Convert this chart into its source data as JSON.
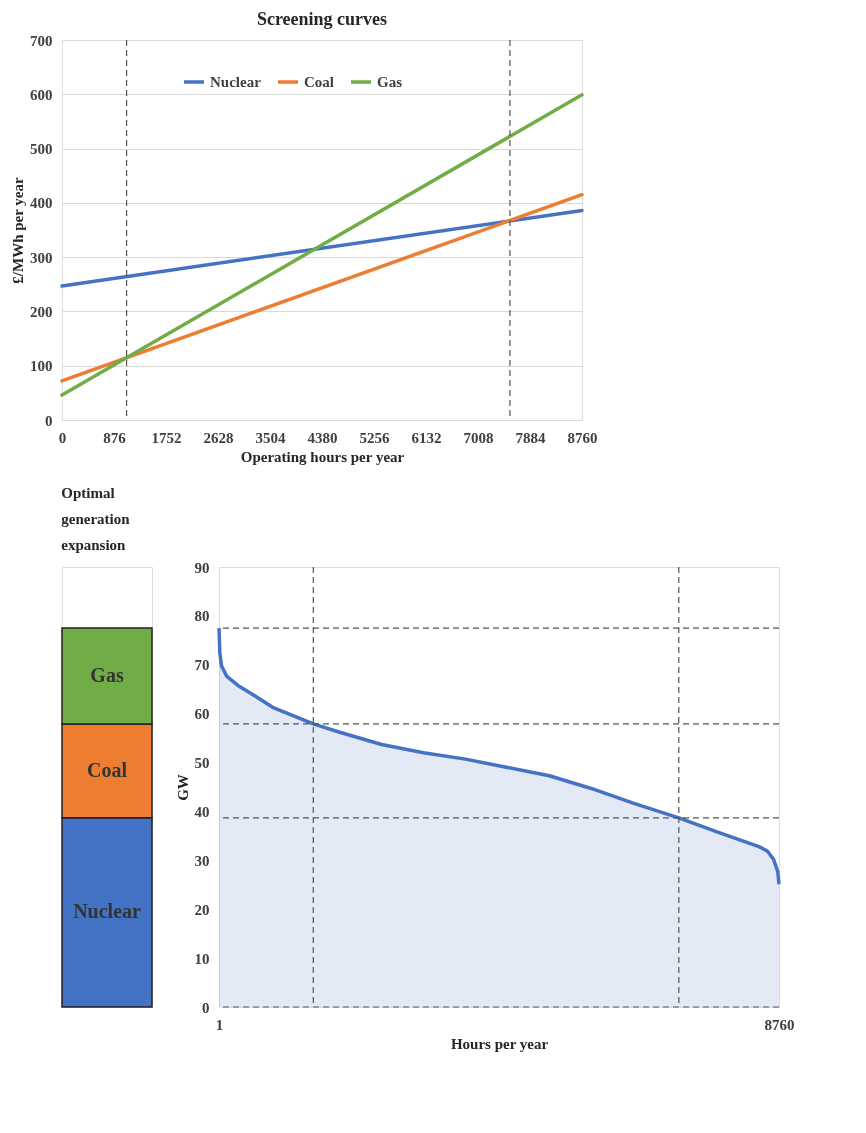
{
  "chart_data": [
    {
      "type": "line",
      "title": "Screening curves",
      "xlabel": "Operating hours per year",
      "ylabel": "£/MWh per year",
      "x": [
        0,
        8760
      ],
      "xlim": [
        0,
        8760
      ],
      "xticks": [
        0,
        876,
        1752,
        2628,
        3504,
        4380,
        5256,
        6132,
        7008,
        7884,
        8760
      ],
      "ylim": [
        0,
        700
      ],
      "yticks": [
        0,
        100,
        200,
        300,
        400,
        500,
        600,
        700
      ],
      "grid": "y",
      "legend": "top",
      "series": [
        {
          "name": "Nuclear",
          "color": "#4472c4",
          "values": [
            247,
            386
          ]
        },
        {
          "name": "Coal",
          "color": "#ed7d31",
          "values": [
            72,
            415
          ]
        },
        {
          "name": "Gas",
          "color": "#70ad47",
          "values": [
            46,
            599
          ]
        }
      ],
      "ref_lines": [
        {
          "axis": "x",
          "value": 1088,
          "line_style": "dashed",
          "color": "#555555"
        },
        {
          "axis": "x",
          "value": 7546,
          "line_style": "dashed",
          "color": "#555555"
        }
      ]
    },
    {
      "type": "area",
      "xlabel": "Hours per year",
      "ylabel": "GW",
      "x": [
        1,
        14,
        40,
        119,
        316,
        578,
        840,
        1476,
        1889,
        2545,
        3200,
        3856,
        4512,
        5167,
        5823,
        6479,
        7193,
        7790,
        8446,
        8577,
        8675,
        8741,
        8760
      ],
      "xlim": [
        1,
        8760
      ],
      "xticks": [
        1,
        8760
      ],
      "ylim": [
        0,
        90
      ],
      "yticks": [
        0,
        10,
        20,
        30,
        40,
        50,
        60,
        70,
        80,
        90
      ],
      "series": [
        {
          "type": "area",
          "color": "#4472c4",
          "values": [
            77.5,
            72.4,
            69.8,
            67.7,
            65.6,
            63.5,
            61.3,
            57.9,
            56.2,
            53.7,
            52.0,
            50.7,
            49.0,
            47.3,
            44.7,
            41.7,
            38.7,
            35.8,
            32.8,
            31.9,
            30.2,
            27.7,
            25.1
          ]
        }
      ],
      "ref_lines": [
        {
          "axis": "y",
          "value": 77.5,
          "line_style": "dashed",
          "color": "#555555"
        },
        {
          "axis": "y",
          "value": 57.9,
          "line_style": "dashed",
          "color": "#555555"
        },
        {
          "axis": "y",
          "value": 38.7,
          "line_style": "dashed",
          "color": "#555555"
        },
        {
          "axis": "y",
          "value": 0,
          "line_style": "dashed",
          "color": "#555555"
        },
        {
          "axis": "x",
          "value": 1476,
          "line_style": "dashed",
          "color": "#555555"
        },
        {
          "axis": "x",
          "value": 7193,
          "line_style": "dashed",
          "color": "#555555"
        }
      ]
    },
    {
      "type": "bar",
      "title": "Optimal generation expansion",
      "categories": [
        null
      ],
      "stacked": true,
      "ylim": [
        0,
        90
      ],
      "tick_labels": false,
      "series": [
        {
          "name": "Nuclear",
          "color": "#4472c4",
          "values": [
            38.7
          ]
        },
        {
          "name": "Coal",
          "color": "#ed7d31",
          "values": [
            19.2
          ]
        },
        {
          "name": "Gas",
          "color": "#70ad47",
          "values": [
            19.6
          ]
        }
      ]
    }
  ]
}
